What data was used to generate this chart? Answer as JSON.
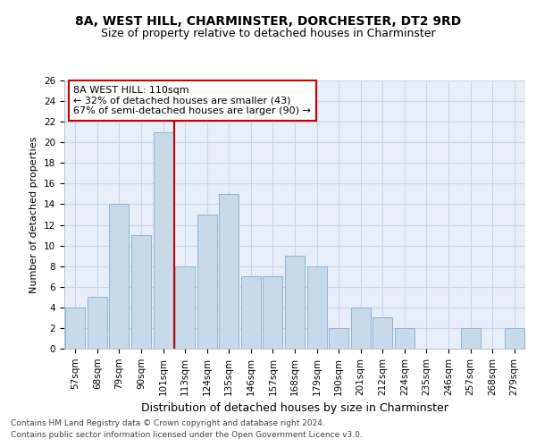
{
  "title1": "8A, WEST HILL, CHARMINSTER, DORCHESTER, DT2 9RD",
  "title2": "Size of property relative to detached houses in Charminster",
  "xlabel": "Distribution of detached houses by size in Charminster",
  "ylabel": "Number of detached properties",
  "categories": [
    "57sqm",
    "68sqm",
    "79sqm",
    "90sqm",
    "101sqm",
    "113sqm",
    "124sqm",
    "135sqm",
    "146sqm",
    "157sqm",
    "168sqm",
    "179sqm",
    "190sqm",
    "201sqm",
    "212sqm",
    "224sqm",
    "235sqm",
    "246sqm",
    "257sqm",
    "268sqm",
    "279sqm"
  ],
  "values": [
    4,
    5,
    14,
    11,
    21,
    8,
    13,
    15,
    7,
    7,
    9,
    8,
    2,
    4,
    3,
    2,
    0,
    0,
    2,
    0,
    2
  ],
  "bar_color": "#c8d9ea",
  "bar_edge_color": "#8ab4d0",
  "vline_x_index": 4,
  "vline_color": "#cc0000",
  "annotation_text": "8A WEST HILL: 110sqm\n← 32% of detached houses are smaller (43)\n67% of semi-detached houses are larger (90) →",
  "annotation_box_color": "white",
  "annotation_box_edge": "#cc0000",
  "ylim": [
    0,
    26
  ],
  "yticks": [
    0,
    2,
    4,
    6,
    8,
    10,
    12,
    14,
    16,
    18,
    20,
    22,
    24,
    26
  ],
  "grid_color": "#c8d4e8",
  "footnote1": "Contains HM Land Registry data © Crown copyright and database right 2024.",
  "footnote2": "Contains public sector information licensed under the Open Government Licence v3.0.",
  "background_color": "#e8eef8",
  "title1_fontsize": 10,
  "title2_fontsize": 9,
  "xlabel_fontsize": 9,
  "ylabel_fontsize": 8,
  "tick_fontsize": 7.5,
  "annot_fontsize": 8,
  "footnote_fontsize": 6.5
}
